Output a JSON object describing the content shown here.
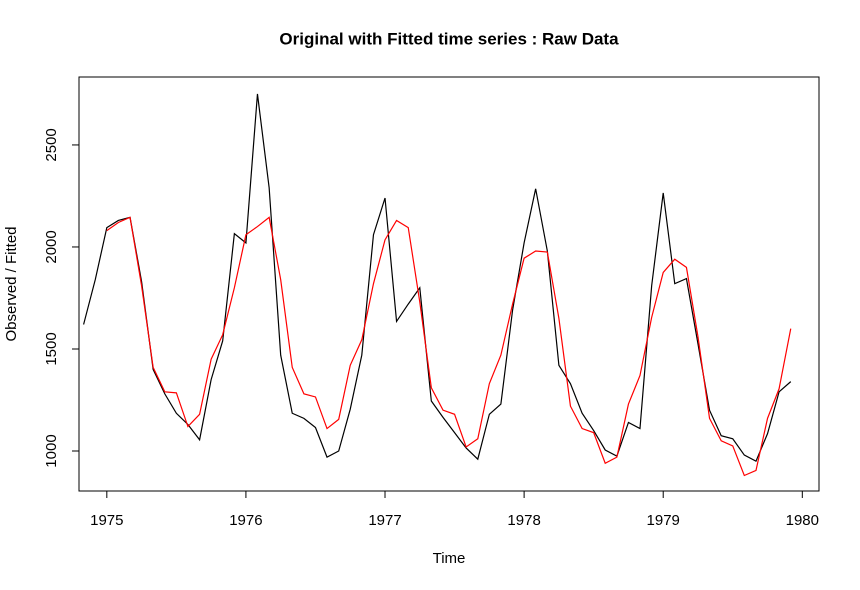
{
  "chart_data": {
    "type": "line",
    "title": "Original with Fitted time series : Raw Data",
    "x_label": "Time",
    "y_label": "Observed / Fitted",
    "x": [
      1974.833,
      1974.917,
      1975,
      1975.083,
      1975.167,
      1975.25,
      1975.333,
      1975.417,
      1975.5,
      1975.583,
      1975.667,
      1975.75,
      1975.833,
      1975.917,
      1976,
      1976.083,
      1976.167,
      1976.25,
      1976.333,
      1976.417,
      1976.5,
      1976.583,
      1976.667,
      1976.75,
      1976.833,
      1976.917,
      1977,
      1977.083,
      1977.167,
      1977.25,
      1977.333,
      1977.417,
      1977.5,
      1977.583,
      1977.667,
      1977.75,
      1977.833,
      1977.917,
      1978,
      1978.083,
      1978.167,
      1978.25,
      1978.333,
      1978.417,
      1978.5,
      1978.583,
      1978.667,
      1978.75,
      1978.833,
      1978.917,
      1979,
      1979.083,
      1979.167,
      1979.25,
      1979.333,
      1979.417,
      1979.5,
      1979.583,
      1979.667,
      1979.75,
      1979.833,
      1979.917
    ],
    "series": [
      {
        "color": "#000000",
        "values": [
          1620,
          1840,
          2095,
          2130,
          2145,
          1830,
          1400,
          1280,
          1185,
          1130,
          1055,
          1350,
          1540,
          2065,
          2020,
          2750,
          2290,
          1470,
          1185,
          1160,
          1115,
          970,
          1000,
          1205,
          1470,
          2060,
          2240,
          1635,
          1720,
          1800,
          1245,
          1165,
          1090,
          1015,
          960,
          1180,
          1230,
          1690,
          2020,
          2285,
          1980,
          1420,
          1330,
          1185,
          1100,
          1005,
          975,
          1140,
          1110,
          1810,
          2265,
          1820,
          1845,
          1525,
          1200,
          1075,
          1060,
          980,
          950,
          1085,
          1290,
          1340
        ]
      },
      {
        "color": "#ff0000",
        "values": [
          null,
          null,
          2080,
          2120,
          2145,
          1810,
          1410,
          1290,
          1285,
          1120,
          1180,
          1450,
          1570,
          1800,
          2060,
          2100,
          2145,
          1840,
          1410,
          1280,
          1265,
          1110,
          1155,
          1420,
          1545,
          1820,
          2035,
          2130,
          2095,
          1730,
          1310,
          1200,
          1180,
          1020,
          1060,
          1330,
          1470,
          1720,
          1945,
          1980,
          1975,
          1650,
          1220,
          1110,
          1090,
          940,
          970,
          1230,
          1370,
          1655,
          1875,
          1940,
          1900,
          1560,
          1160,
          1050,
          1025,
          880,
          905,
          1160,
          1305,
          1600
        ]
      }
    ],
    "xlim": [
      1974.8,
      1980.12
    ],
    "xticks": [
      1975,
      1976,
      1977,
      1978,
      1979,
      1980
    ],
    "ylim": [
      804,
      2833
    ],
    "yticks": [
      1000,
      1500,
      2000,
      2500
    ]
  }
}
